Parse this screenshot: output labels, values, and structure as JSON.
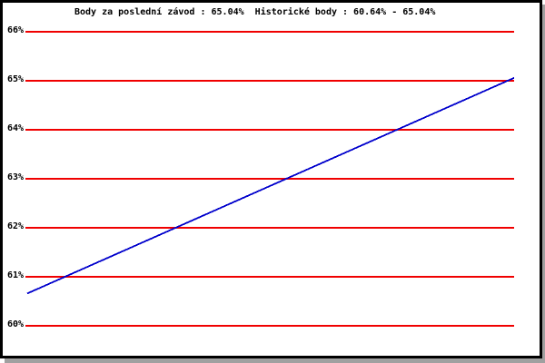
{
  "window": {
    "background": "#ffffff",
    "frame_border_color": "#000000",
    "frame_shadow_color": "#a0a0a0"
  },
  "chart_data": {
    "type": "line",
    "title": "Body za poslední závod : 65.04%  Historické body : 60.64% - 65.04%",
    "title_parts": {
      "last_race_label": "Body za poslední závod",
      "last_race_value": "65.04%",
      "historic_label": "Historické body",
      "historic_min": "60.64%",
      "historic_max": "65.04%"
    },
    "xlabel": "",
    "ylabel": "",
    "y_ticks": [
      {
        "label": "66%",
        "value": 66
      },
      {
        "label": "65%",
        "value": 65
      },
      {
        "label": "64%",
        "value": 64
      },
      {
        "label": "63%",
        "value": 63
      },
      {
        "label": "62%",
        "value": 62
      },
      {
        "label": "61%",
        "value": 61
      },
      {
        "label": "60%",
        "value": 60
      }
    ],
    "ylim": [
      59.4,
      66.6
    ],
    "grid": {
      "orientation": "horizontal",
      "color": "#f00000",
      "visible": true
    },
    "series": [
      {
        "name": "Historické body",
        "color": "#0000cc",
        "x": [
          0,
          1
        ],
        "values": [
          60.64,
          65.04
        ]
      }
    ],
    "legend_position": "none",
    "markers": "none",
    "x_tick_labels": []
  }
}
